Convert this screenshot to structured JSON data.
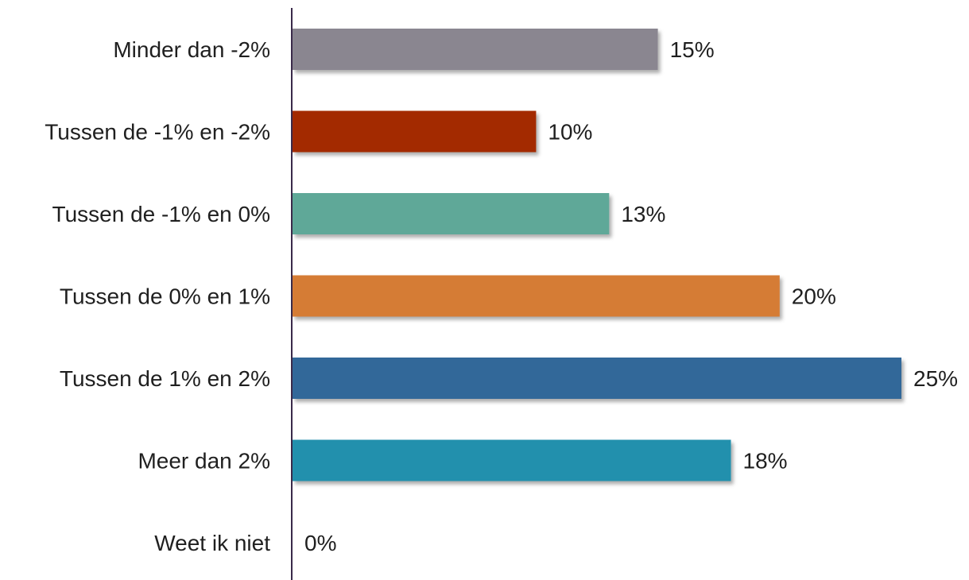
{
  "chart_data": {
    "type": "bar",
    "orientation": "horizontal",
    "categories": [
      "Minder dan -2%",
      "Tussen de -1% en -2%",
      "Tussen de -1% en 0%",
      "Tussen de 0% en 1%",
      "Tussen de 1% en 2%",
      "Meer dan 2%",
      "Weet ik niet"
    ],
    "values": [
      15,
      10,
      13,
      20,
      25,
      18,
      0
    ],
    "value_labels": [
      "15%",
      "10%",
      "13%",
      "20%",
      "25%",
      "18%",
      "0%"
    ],
    "colors": [
      "#8a8690",
      "#a32a05",
      "#5fa898",
      "#d57c35",
      "#336899",
      "#2090ad",
      "#cccccc"
    ],
    "axis_color": "#3a2a4a",
    "xlim": [
      0,
      25
    ],
    "grid": false,
    "legend": false
  }
}
